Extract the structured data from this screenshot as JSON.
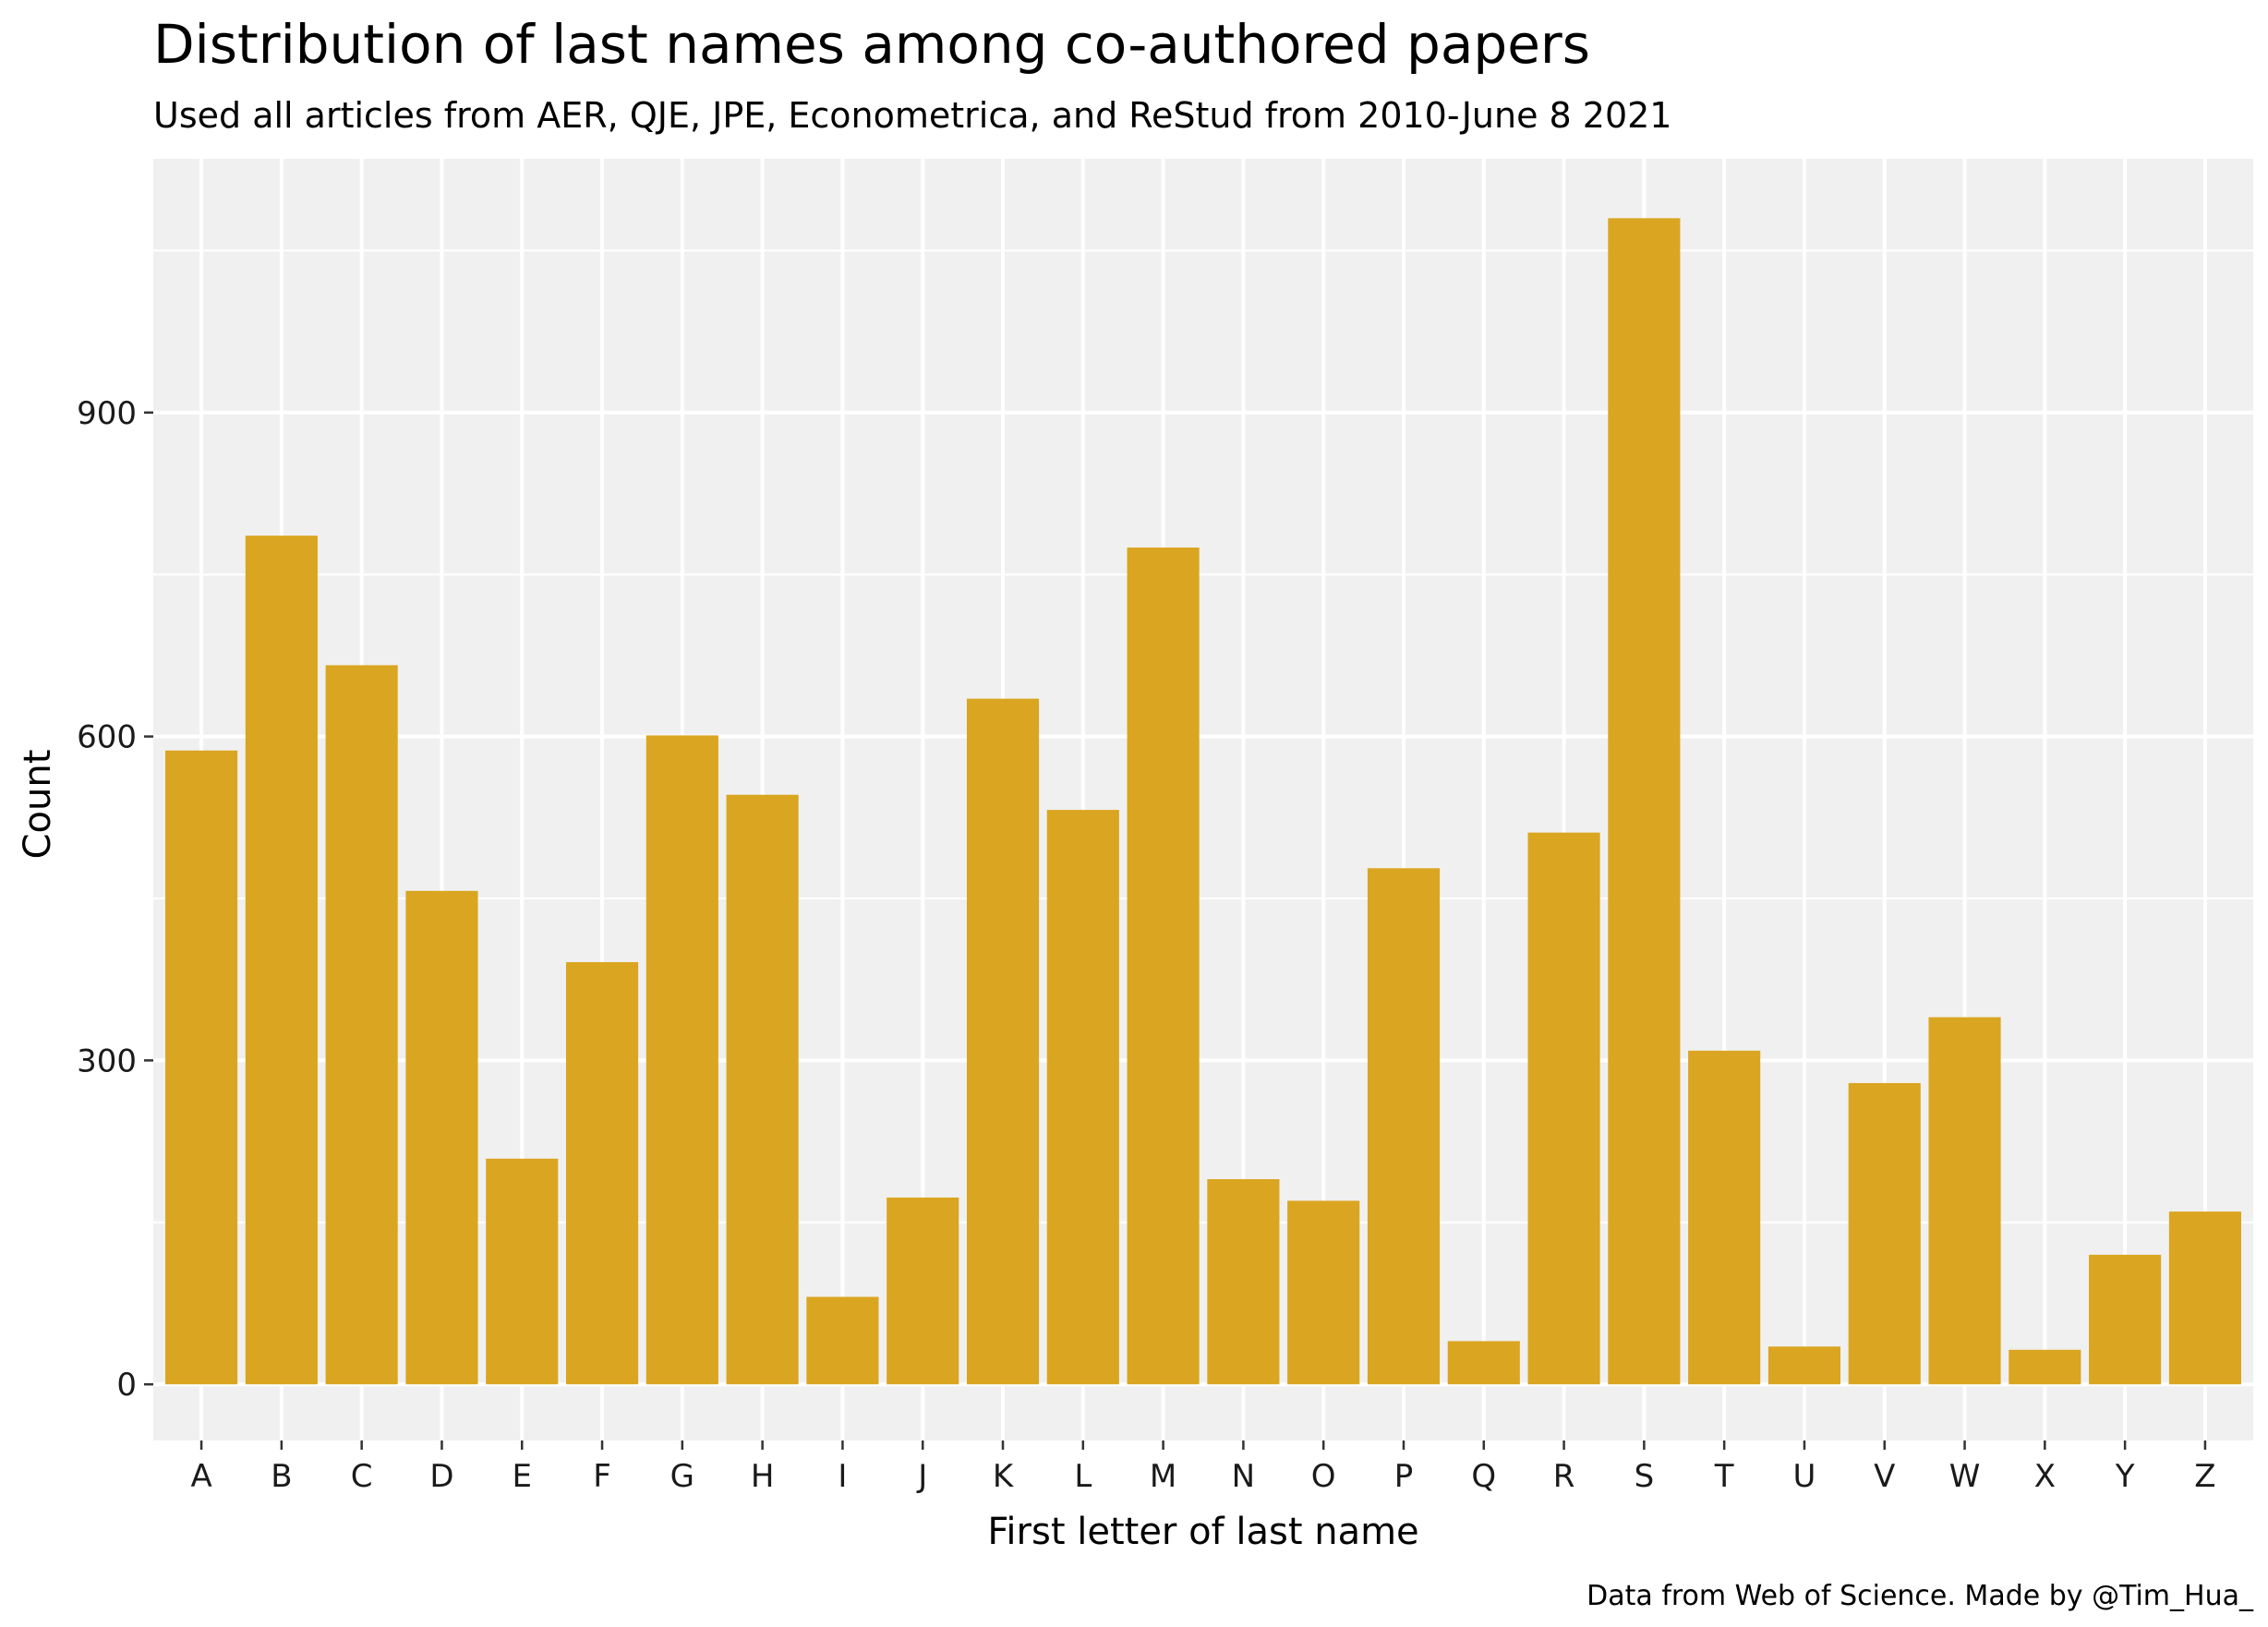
{
  "chart_data": {
    "type": "bar",
    "title": "Distribution of last names among co-authored papers",
    "subtitle": "Used all articles from AER, QJE, JPE, Econometrica, and ReStud from 2010-June 8 2021",
    "xlabel": "First letter of last name",
    "ylabel": "Count",
    "caption": "Data from Web of Science. Made by @Tim_Hua_",
    "categories": [
      "A",
      "B",
      "C",
      "D",
      "E",
      "F",
      "G",
      "H",
      "I",
      "J",
      "K",
      "L",
      "M",
      "N",
      "O",
      "P",
      "Q",
      "R",
      "S",
      "T",
      "U",
      "V",
      "W",
      "X",
      "Y",
      "Z"
    ],
    "values": [
      587,
      786,
      666,
      457,
      209,
      391,
      601,
      546,
      81,
      173,
      635,
      532,
      775,
      190,
      170,
      478,
      40,
      511,
      1080,
      309,
      35,
      279,
      340,
      32,
      120,
      160
    ],
    "yticks": [
      0,
      300,
      600,
      900
    ],
    "ylim": [
      -52,
      1135
    ],
    "grid": true,
    "bar_color": "#DAA520",
    "panel_color": "#F0F0F0",
    "grid_color": "#FFFFFF"
  }
}
